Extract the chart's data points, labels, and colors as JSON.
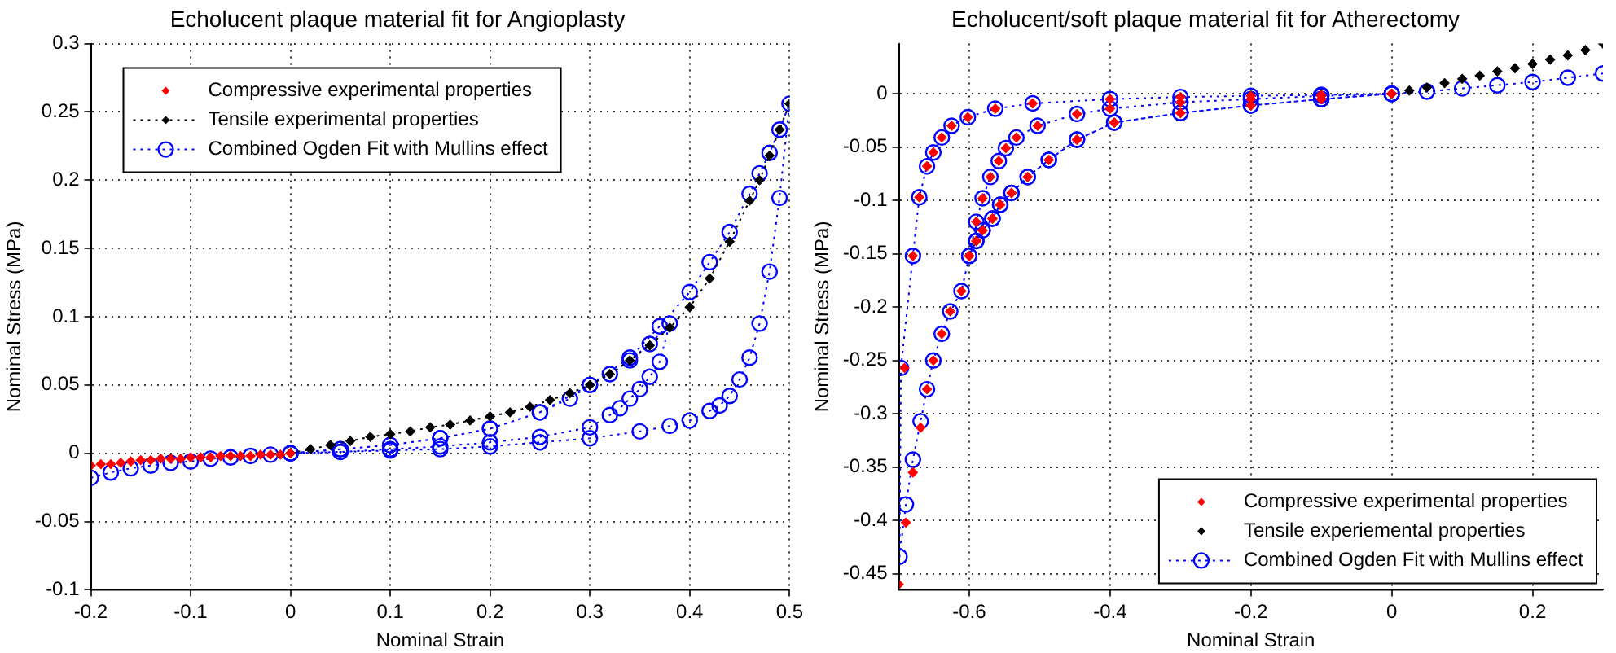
{
  "chart_data": [
    {
      "type": "line",
      "title": "Echolucent plaque material fit for Angioplasty",
      "xlabel": "Nominal Strain",
      "ylabel": "Nominal Stress (MPa)",
      "xlim": [
        -0.2,
        0.5
      ],
      "ylim": [
        -0.1,
        0.3
      ],
      "xticks": [
        -0.2,
        -0.1,
        0,
        0.1,
        0.2,
        0.3,
        0.4,
        0.5
      ],
      "yticks": [
        -0.1,
        -0.05,
        0,
        0.05,
        0.1,
        0.15,
        0.2,
        0.25,
        0.3
      ],
      "grid": true,
      "legend": "top left",
      "series": [
        {
          "name": "Compressive experimental properties",
          "type": "scatter",
          "color": "#ff0000",
          "marker": "diamond",
          "x": [
            -0.2,
            -0.19,
            -0.18,
            -0.17,
            -0.16,
            -0.15,
            -0.14,
            -0.13,
            -0.12,
            -0.11,
            -0.1,
            -0.09,
            -0.08,
            -0.07,
            -0.06,
            -0.05,
            -0.04,
            -0.03,
            -0.02,
            -0.01,
            0
          ],
          "values": [
            -0.009,
            -0.008,
            -0.008,
            -0.007,
            -0.006,
            -0.005,
            -0.005,
            -0.004,
            -0.004,
            -0.004,
            -0.003,
            -0.003,
            -0.003,
            -0.002,
            -0.002,
            -0.002,
            -0.002,
            -0.001,
            -0.001,
            -0.001,
            0
          ]
        },
        {
          "name": "Tensile experimental properties",
          "type": "line",
          "line_style": "dotted",
          "color": "#000000",
          "marker": "diamond",
          "x": [
            0,
            0.02,
            0.04,
            0.06,
            0.08,
            0.1,
            0.12,
            0.14,
            0.16,
            0.18,
            0.2,
            0.22,
            0.24,
            0.26,
            0.28,
            0.3,
            0.32,
            0.34,
            0.36,
            0.38,
            0.4,
            0.42,
            0.44,
            0.46,
            0.47,
            0.48,
            0.49,
            0.5
          ],
          "values": [
            0,
            0.003,
            0.006,
            0.009,
            0.012,
            0.014,
            0.016,
            0.019,
            0.021,
            0.024,
            0.027,
            0.03,
            0.034,
            0.039,
            0.044,
            0.05,
            0.058,
            0.068,
            0.079,
            0.092,
            0.107,
            0.128,
            0.155,
            0.185,
            0.2,
            0.218,
            0.237,
            0.256
          ]
        },
        {
          "name": "Combined Ogden Fit with Mullins effect",
          "type": "line",
          "line_style": "dotted",
          "color": "#0000ff",
          "marker": "circle",
          "x": [
            -0.2,
            -0.18,
            -0.16,
            -0.14,
            -0.12,
            -0.1,
            -0.08,
            -0.06,
            -0.04,
            -0.02,
            0,
            0.05,
            0.1,
            0.15,
            0.2,
            0.25,
            0.28,
            0.3,
            0.32,
            0.34,
            0.36,
            0.38,
            0.37,
            0.36,
            0.35,
            0.34,
            0.33,
            0.32,
            0.3,
            0.25,
            0.2,
            0.15,
            0.1,
            0.05,
            0,
            0.05,
            0.1,
            0.15,
            0.2,
            0.25,
            0.3,
            0.34,
            0.37,
            0.4,
            0.42,
            0.44,
            0.46,
            0.47,
            0.48,
            0.49,
            0.5,
            0.49,
            0.48,
            0.47,
            0.46,
            0.45,
            0.44,
            0.43,
            0.42,
            0.4,
            0.38,
            0.35,
            0.3,
            0.25,
            0.2,
            0.15,
            0.1,
            0.05,
            0
          ],
          "values": [
            -0.018,
            -0.014,
            -0.011,
            -0.009,
            -0.007,
            -0.006,
            -0.004,
            -0.003,
            -0.002,
            -0.001,
            0,
            0.003,
            0.006,
            0.011,
            0.018,
            0.03,
            0.04,
            0.05,
            0.058,
            0.068,
            0.08,
            0.095,
            0.067,
            0.056,
            0.047,
            0.04,
            0.033,
            0.028,
            0.019,
            0.012,
            0.008,
            0.005,
            0.003,
            0.001,
            0,
            0.003,
            0.006,
            0.011,
            0.018,
            0.03,
            0.05,
            0.07,
            0.093,
            0.118,
            0.14,
            0.162,
            0.19,
            0.205,
            0.22,
            0.237,
            0.256,
            0.187,
            0.133,
            0.095,
            0.07,
            0.054,
            0.042,
            0.035,
            0.031,
            0.024,
            0.02,
            0.016,
            0.011,
            0.008,
            0.005,
            0.003,
            0.002,
            0.001,
            0
          ]
        }
      ]
    },
    {
      "type": "line",
      "title": "Echolucent/soft plaque material fit for Atherectomy",
      "xlabel": "Nominal Strain",
      "ylabel": "Nominal Stress (MPa)",
      "xlim": [
        -0.7,
        0.3
      ],
      "ylim": [
        -0.465,
        0.047
      ],
      "xticks": [
        -0.6,
        -0.4,
        -0.2,
        0,
        0.2
      ],
      "yticks": [
        -0.45,
        -0.4,
        -0.35,
        -0.3,
        -0.25,
        -0.2,
        -0.15,
        -0.1,
        -0.05,
        0
      ],
      "grid": true,
      "legend": "bottom right",
      "series": [
        {
          "name": "Compressive experimental properties",
          "type": "scatter",
          "color": "#ff0000",
          "marker": "diamond",
          "x": [
            0,
            -0.1,
            -0.2,
            -0.3,
            -0.394,
            -0.447,
            -0.487,
            -0.517,
            -0.54,
            -0.556,
            -0.567,
            -0.581,
            -0.59,
            -0.6,
            -0.59,
            -0.581,
            -0.57,
            -0.558,
            -0.548,
            -0.533,
            -0.503,
            -0.447,
            -0.4,
            -0.3,
            -0.2,
            -0.1,
            0,
            -0.1,
            -0.2,
            -0.3,
            -0.394,
            -0.447,
            -0.487,
            -0.517,
            -0.54,
            -0.556,
            -0.567,
            -0.581,
            -0.59,
            -0.6,
            -0.611,
            -0.627,
            -0.639,
            -0.651,
            -0.66,
            -0.669,
            -0.68,
            -0.69,
            -0.7,
            -0.692,
            -0.68,
            -0.671,
            -0.66,
            -0.651,
            -0.639,
            -0.625,
            -0.602,
            -0.563,
            -0.51,
            -0.4,
            -0.3,
            -0.2,
            -0.1,
            0
          ],
          "values": [
            0,
            -0.005,
            -0.011,
            -0.018,
            -0.027,
            -0.043,
            -0.062,
            -0.078,
            -0.093,
            -0.104,
            -0.117,
            -0.128,
            -0.138,
            -0.152,
            -0.12,
            -0.098,
            -0.078,
            -0.063,
            -0.051,
            -0.041,
            -0.03,
            -0.019,
            -0.014,
            -0.008,
            -0.005,
            -0.002,
            0,
            -0.005,
            -0.011,
            -0.018,
            -0.027,
            -0.043,
            -0.062,
            -0.078,
            -0.093,
            -0.104,
            -0.117,
            -0.128,
            -0.138,
            -0.152,
            -0.185,
            -0.204,
            -0.225,
            -0.25,
            -0.277,
            -0.313,
            -0.355,
            -0.402,
            -0.46,
            -0.257,
            -0.152,
            -0.097,
            -0.068,
            -0.055,
            -0.041,
            -0.03,
            -0.022,
            -0.014,
            -0.009,
            -0.005,
            -0.003,
            -0.002,
            -0.001,
            0
          ]
        },
        {
          "name": "Tensile experiemental properties",
          "type": "scatter",
          "color": "#000000",
          "marker": "diamond",
          "x": [
            0,
            0.025,
            0.05,
            0.075,
            0.1,
            0.125,
            0.15,
            0.175,
            0.2,
            0.225,
            0.25,
            0.275,
            0.3
          ],
          "values": [
            0,
            0.003,
            0.006,
            0.01,
            0.014,
            0.017,
            0.021,
            0.024,
            0.028,
            0.032,
            0.036,
            0.041,
            0.047
          ]
        },
        {
          "name": "Combined Ogden Fit with Mullins effect",
          "type": "line",
          "line_style": "dotted",
          "color": "#0000ff",
          "marker": "circle",
          "x": [
            0.3,
            0.25,
            0.2,
            0.15,
            0.1,
            0.05,
            0,
            -0.1,
            -0.2,
            -0.3,
            -0.394,
            -0.447,
            -0.487,
            -0.517,
            -0.54,
            -0.556,
            -0.567,
            -0.581,
            -0.59,
            -0.6,
            -0.59,
            -0.581,
            -0.57,
            -0.558,
            -0.548,
            -0.533,
            -0.503,
            -0.447,
            -0.4,
            -0.3,
            -0.2,
            -0.1,
            0,
            -0.1,
            -0.2,
            -0.3,
            -0.394,
            -0.447,
            -0.487,
            -0.517,
            -0.54,
            -0.556,
            -0.567,
            -0.581,
            -0.59,
            -0.6,
            -0.611,
            -0.627,
            -0.639,
            -0.651,
            -0.66,
            -0.669,
            -0.68,
            -0.69,
            -0.699,
            -0.697,
            -0.68,
            -0.671,
            -0.66,
            -0.651,
            -0.639,
            -0.625,
            -0.602,
            -0.563,
            -0.51,
            -0.4,
            -0.3,
            -0.2,
            -0.1,
            0
          ],
          "values": [
            0.019,
            0.015,
            0.011,
            0.008,
            0.005,
            0.002,
            0,
            -0.005,
            -0.011,
            -0.018,
            -0.027,
            -0.043,
            -0.062,
            -0.078,
            -0.093,
            -0.104,
            -0.117,
            -0.128,
            -0.138,
            -0.152,
            -0.12,
            -0.098,
            -0.078,
            -0.063,
            -0.051,
            -0.041,
            -0.03,
            -0.019,
            -0.014,
            -0.008,
            -0.005,
            -0.002,
            0,
            -0.005,
            -0.011,
            -0.018,
            -0.027,
            -0.043,
            -0.062,
            -0.078,
            -0.093,
            -0.104,
            -0.117,
            -0.128,
            -0.138,
            -0.152,
            -0.185,
            -0.204,
            -0.225,
            -0.25,
            -0.277,
            -0.307,
            -0.343,
            -0.385,
            -0.434,
            -0.257,
            -0.152,
            -0.097,
            -0.068,
            -0.055,
            -0.041,
            -0.03,
            -0.022,
            -0.014,
            -0.009,
            -0.005,
            -0.003,
            -0.002,
            -0.001,
            0
          ]
        }
      ]
    }
  ]
}
